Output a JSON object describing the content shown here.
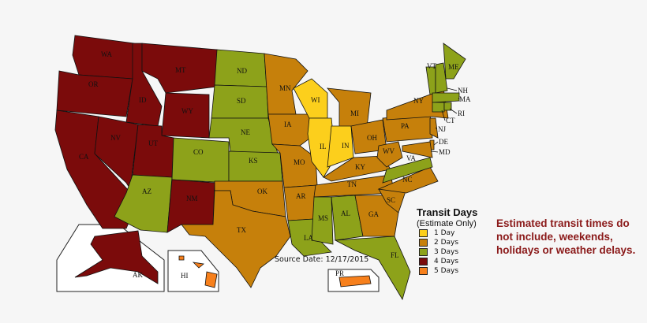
{
  "legend": {
    "title": "Transit Days",
    "subtitle": "(Estimate Only)",
    "items": [
      {
        "label": "1 Day",
        "days": 1,
        "color": "#fccf1c"
      },
      {
        "label": "2 Days",
        "days": 2,
        "color": "#c6800b"
      },
      {
        "label": "3 Days",
        "days": 3,
        "color": "#8da21a"
      },
      {
        "label": "4 Days",
        "days": 4,
        "color": "#7b0b0b"
      },
      {
        "label": "5 Days",
        "days": 5,
        "color": "#f7801c"
      }
    ]
  },
  "note": "Estimated transit times do not include, weekends, holidays or weather delays.",
  "source_date": "Source Date: 12/17/2015",
  "states": [
    {
      "code": "WA",
      "days": 4
    },
    {
      "code": "OR",
      "days": 4
    },
    {
      "code": "CA",
      "days": 4
    },
    {
      "code": "NV",
      "days": 4
    },
    {
      "code": "ID",
      "days": 4
    },
    {
      "code": "MT",
      "days": 4
    },
    {
      "code": "WY",
      "days": 4
    },
    {
      "code": "UT",
      "days": 4
    },
    {
      "code": "AZ",
      "days": 3
    },
    {
      "code": "CO",
      "days": 3
    },
    {
      "code": "NM",
      "days": 4
    },
    {
      "code": "ND",
      "days": 3
    },
    {
      "code": "SD",
      "days": 3
    },
    {
      "code": "NE",
      "days": 3
    },
    {
      "code": "KS",
      "days": 3
    },
    {
      "code": "OK",
      "days": 2
    },
    {
      "code": "TX",
      "days": 2
    },
    {
      "code": "MN",
      "days": 2
    },
    {
      "code": "IA",
      "days": 2
    },
    {
      "code": "MO",
      "days": 2
    },
    {
      "code": "AR",
      "days": 2
    },
    {
      "code": "LA",
      "days": 3
    },
    {
      "code": "WI",
      "days": 1
    },
    {
      "code": "IL",
      "days": 1
    },
    {
      "code": "MI",
      "days": 2
    },
    {
      "code": "IN",
      "days": 1
    },
    {
      "code": "OH",
      "days": 2
    },
    {
      "code": "KY",
      "days": 2
    },
    {
      "code": "TN",
      "days": 2
    },
    {
      "code": "MS",
      "days": 3
    },
    {
      "code": "AL",
      "days": 3
    },
    {
      "code": "GA",
      "days": 2
    },
    {
      "code": "FL",
      "days": 3
    },
    {
      "code": "SC",
      "days": 2
    },
    {
      "code": "NC",
      "days": 2
    },
    {
      "code": "VA",
      "days": 3
    },
    {
      "code": "WV",
      "days": 2
    },
    {
      "code": "PA",
      "days": 2
    },
    {
      "code": "NY",
      "days": 2
    },
    {
      "code": "VT",
      "days": 3
    },
    {
      "code": "NH",
      "days": 3
    },
    {
      "code": "ME",
      "days": 3
    },
    {
      "code": "MA",
      "days": 3
    },
    {
      "code": "CT",
      "days": 3
    },
    {
      "code": "RI",
      "days": 3
    },
    {
      "code": "NJ",
      "days": 2
    },
    {
      "code": "DE",
      "days": 2
    },
    {
      "code": "MD",
      "days": 2
    },
    {
      "code": "AK",
      "days": 4
    },
    {
      "code": "HI",
      "days": 5
    },
    {
      "code": "PR",
      "days": 5
    }
  ]
}
